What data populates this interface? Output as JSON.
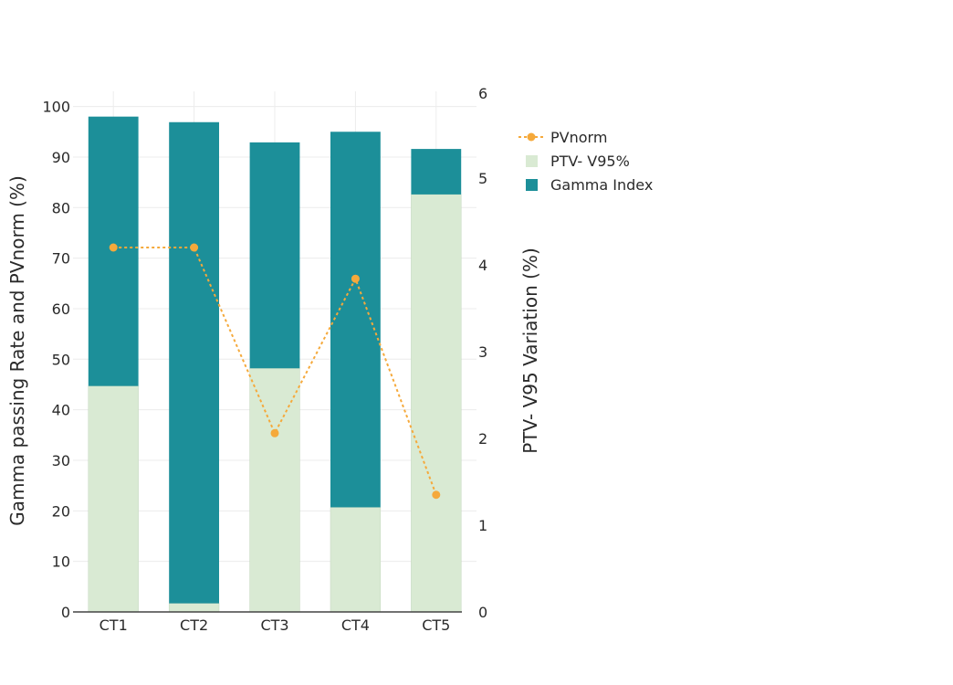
{
  "chart_data": {
    "type": "bar",
    "categories": [
      "CT1",
      "CT2",
      "CT3",
      "CT4",
      "CT5"
    ],
    "stacked": true,
    "series": [
      {
        "name": "PTV- V95%",
        "axis": "left",
        "kind": "bar",
        "color": "#d9ead3",
        "values": [
          44.7,
          1.7,
          48.2,
          20.7,
          82.6
        ]
      },
      {
        "name": "Gamma Index",
        "axis": "left",
        "kind": "bar",
        "color": "#1c8f99",
        "values": [
          53.3,
          95.2,
          44.7,
          74.3,
          9.0
        ]
      },
      {
        "name": "PVnorm",
        "axis": "right",
        "kind": "line",
        "color": "#f5a93b",
        "values": [
          4.2,
          4.2,
          2.06,
          3.84,
          1.35
        ]
      }
    ],
    "y_left": {
      "label": "Gamma passing Rate and PVnorm (%)",
      "range": [
        0,
        103
      ],
      "ticks": [
        0,
        10,
        20,
        30,
        40,
        50,
        60,
        70,
        80,
        90,
        100
      ]
    },
    "y_right": {
      "label": "PTV- V95 Variation (%)",
      "range": [
        0,
        6
      ],
      "ticks": [
        0,
        1,
        2,
        3,
        4,
        5,
        6
      ]
    },
    "legend": [
      "PVnorm",
      "PTV- V95%",
      "Gamma Index"
    ],
    "legend_position": "top-right",
    "grid": true
  }
}
